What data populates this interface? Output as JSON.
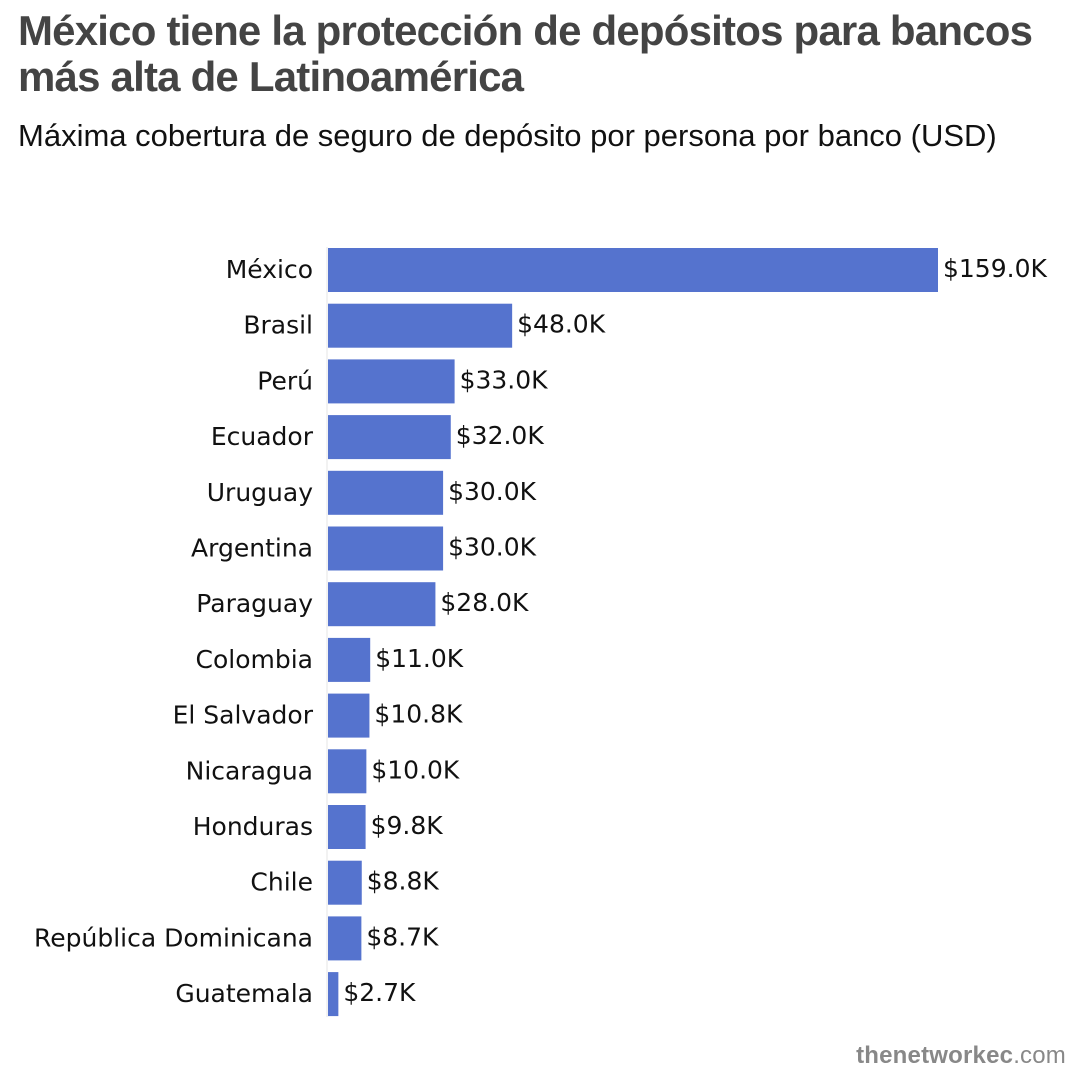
{
  "header": {
    "title": "México tiene la protección de depósitos para bancos más alta de Latinoamérica",
    "subtitle": "Máxima cobertura de seguro de depósito por persona por banco (USD)"
  },
  "footer": {
    "brand": "thenetworkec",
    "tld": ".com"
  },
  "chart_data": {
    "type": "bar",
    "orientation": "horizontal",
    "title": "México tiene la protección de depósitos para bancos más alta de Latinoamérica",
    "subtitle": "Máxima cobertura de seguro de depósito por persona por banco (USD)",
    "categories": [
      "México",
      "Brasil",
      "Perú",
      "Ecuador",
      "Uruguay",
      "Argentina",
      "Paraguay",
      "Colombia",
      "El Salvador",
      "Nicaragua",
      "Honduras",
      "Chile",
      "República Dominicana",
      "Guatemala"
    ],
    "values": [
      159.0,
      48.0,
      33.0,
      32.0,
      30.0,
      30.0,
      28.0,
      11.0,
      10.8,
      10.0,
      9.8,
      8.8,
      8.7,
      2.7
    ],
    "labels": [
      "$159.0K",
      "$48.0K",
      "$33.0K",
      "$32.0K",
      "$30.0K",
      "$30.0K",
      "$28.0K",
      "$11.0K",
      "$10.8K",
      "$10.0K",
      "$9.8K",
      "$8.8K",
      "$8.7K",
      "$2.7K"
    ],
    "xlim": [
      0,
      159.0
    ],
    "bar_color": "#5573ce",
    "grid": false,
    "legend": "none"
  }
}
